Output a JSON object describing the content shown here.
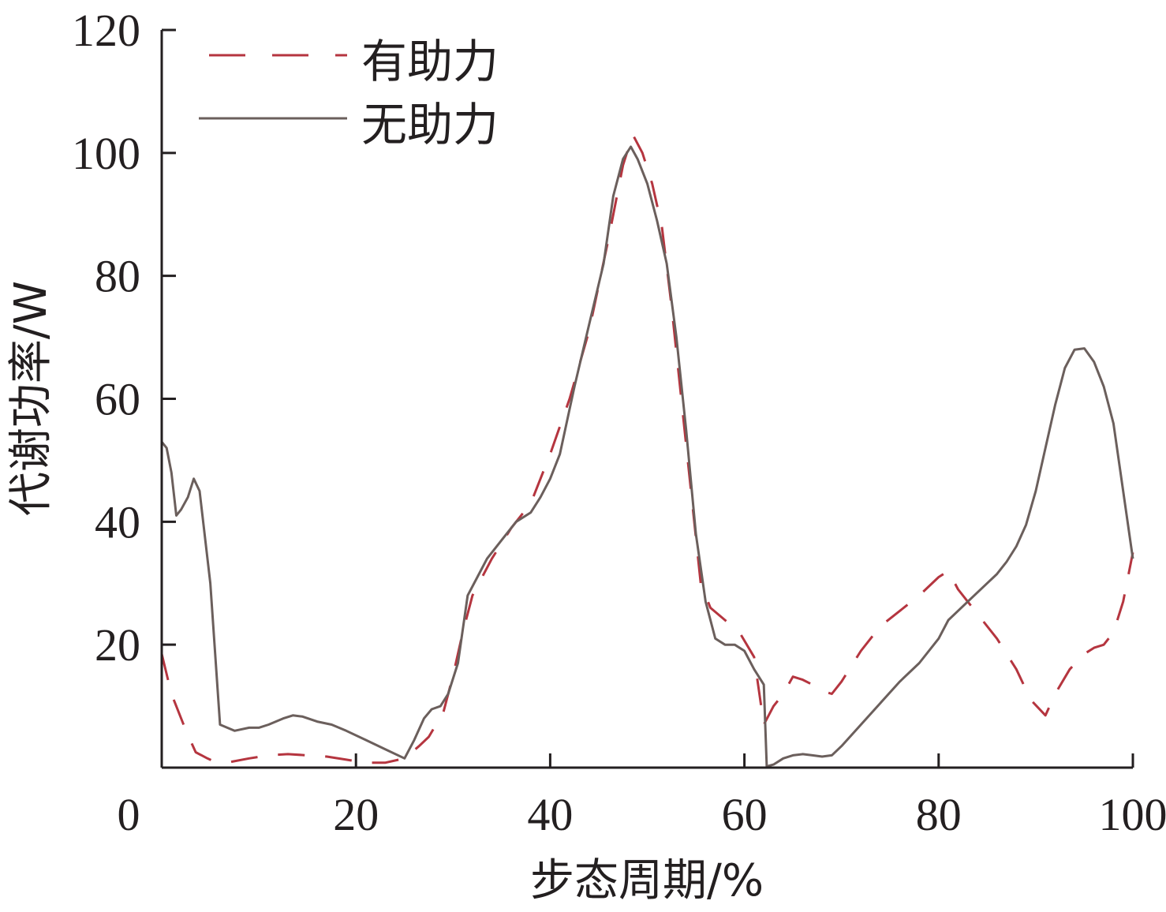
{
  "chart_data": {
    "type": "line",
    "title": "",
    "xlabel": "步态周期/%",
    "ylabel": "代谢功率/W",
    "xlim": [
      0,
      100
    ],
    "ylim": [
      0,
      120
    ],
    "x_ticks": [
      0,
      20,
      40,
      60,
      80,
      100
    ],
    "y_ticks": [
      20,
      40,
      60,
      80,
      100,
      120
    ],
    "x_tick_labels": [
      "0",
      "20",
      "40",
      "60",
      "80",
      "100"
    ],
    "y_tick_labels": [
      "20",
      "40",
      "60",
      "80",
      "100",
      "120"
    ],
    "grid": false,
    "legend_position": "top-left",
    "series": [
      {
        "name": "有助力",
        "color": "#b5353f",
        "style": "dashed",
        "x": [
          0,
          1,
          2.5,
          3.5,
          4.7,
          5.4,
          7,
          9,
          11,
          13,
          15,
          17,
          19,
          21,
          23,
          25,
          26.5,
          27.5,
          29,
          30,
          31,
          32,
          34,
          36,
          38,
          40,
          42,
          44,
          46,
          47.5,
          48.5,
          49.5,
          50.5,
          51.5,
          52.5,
          53.5,
          54.5,
          55.5,
          56.5,
          58,
          59.5,
          61,
          62,
          63,
          64,
          65,
          66,
          67,
          68,
          69,
          70,
          72,
          74,
          76,
          78,
          80,
          81,
          82,
          84,
          86,
          88,
          89.5,
          91,
          92,
          93.5,
          95,
          96,
          97,
          98,
          99,
          100
        ],
        "y": [
          18.5,
          12.0,
          6.0,
          2.5,
          1.5,
          1.0,
          0.9,
          1.5,
          2.0,
          2.2,
          2.0,
          1.8,
          1.3,
          0.8,
          0.8,
          1.5,
          3.5,
          5.0,
          9.0,
          15.0,
          22.0,
          28.0,
          34.0,
          39.0,
          43.0,
          51.0,
          60.0,
          71.0,
          86.0,
          98.0,
          103.0,
          100.0,
          95.0,
          88.0,
          75.0,
          60.0,
          45.0,
          30.0,
          26.0,
          24.0,
          22.0,
          18.0,
          7.0,
          10.0,
          12.0,
          14.8,
          14.3,
          13.5,
          12.5,
          12.0,
          14.0,
          19.0,
          23.0,
          25.5,
          28.0,
          31.0,
          32.0,
          29.0,
          25.0,
          21.0,
          16.0,
          11.0,
          8.5,
          12.0,
          16.0,
          18.5,
          19.5,
          20.0,
          22.0,
          27.0,
          35.0
        ]
      },
      {
        "name": "无助力",
        "color": "#6b5f5c",
        "style": "solid",
        "x": [
          0,
          0.5,
          1.0,
          1.5,
          2.0,
          2.7,
          3.3,
          3.9,
          5.0,
          6.0,
          7.5,
          9.0,
          10.0,
          11.0,
          12.5,
          13.5,
          14.5,
          16.0,
          17.5,
          19.0,
          21.0,
          23.0,
          25.0,
          26.0,
          27.0,
          27.8,
          28.7,
          29.5,
          30.5,
          31.5,
          32.5,
          33.5,
          35.0,
          36.5,
          38.0,
          39.0,
          40.0,
          41.0,
          42.5,
          44.0,
          45.5,
          46.5,
          47.5,
          48.3,
          49.0,
          50.0,
          51.0,
          52.0,
          53.0,
          54.0,
          55.0,
          56.0,
          57.0,
          58.0,
          59.0,
          60.0,
          61.0,
          62.0,
          62.3,
          63.0,
          64.0,
          65.0,
          66.0,
          67.0,
          68.0,
          69.0,
          70.0,
          72.0,
          74.0,
          76.0,
          78.0,
          80.0,
          81.0,
          82.0,
          83.0,
          84.0,
          85.0,
          86.0,
          87.0,
          88.0,
          89.0,
          90.0,
          91.0,
          92.0,
          93.0,
          94.0,
          95.0,
          96.0,
          97.0,
          98.0,
          99.0,
          100.0
        ],
        "y": [
          53.0,
          52.0,
          48.0,
          41.0,
          42.0,
          44.0,
          47.0,
          45.0,
          30.0,
          7.0,
          6.0,
          6.5,
          6.5,
          7.0,
          8.0,
          8.5,
          8.3,
          7.5,
          7.0,
          6.0,
          4.5,
          3.0,
          1.5,
          4.5,
          8.0,
          9.5,
          10.0,
          12.0,
          17.0,
          28.0,
          31.0,
          34.0,
          37.0,
          40.0,
          41.5,
          44.0,
          47.0,
          51.0,
          62.0,
          72.0,
          82.0,
          93.0,
          99.0,
          101.0,
          99.0,
          95.0,
          89.0,
          82.0,
          70.0,
          55.0,
          38.0,
          27.0,
          21.0,
          20.0,
          20.0,
          19.0,
          16.0,
          13.5,
          0.2,
          0.5,
          1.5,
          2.0,
          2.2,
          2.0,
          1.8,
          2.0,
          3.5,
          7.0,
          10.5,
          14.0,
          17.0,
          21.0,
          24.0,
          25.5,
          27.0,
          28.5,
          30.0,
          31.5,
          33.5,
          36.0,
          39.5,
          45.0,
          52.0,
          59.0,
          65.0,
          68.0,
          68.2,
          66.0,
          62.0,
          56.0,
          45.0,
          34.0
        ]
      }
    ]
  }
}
